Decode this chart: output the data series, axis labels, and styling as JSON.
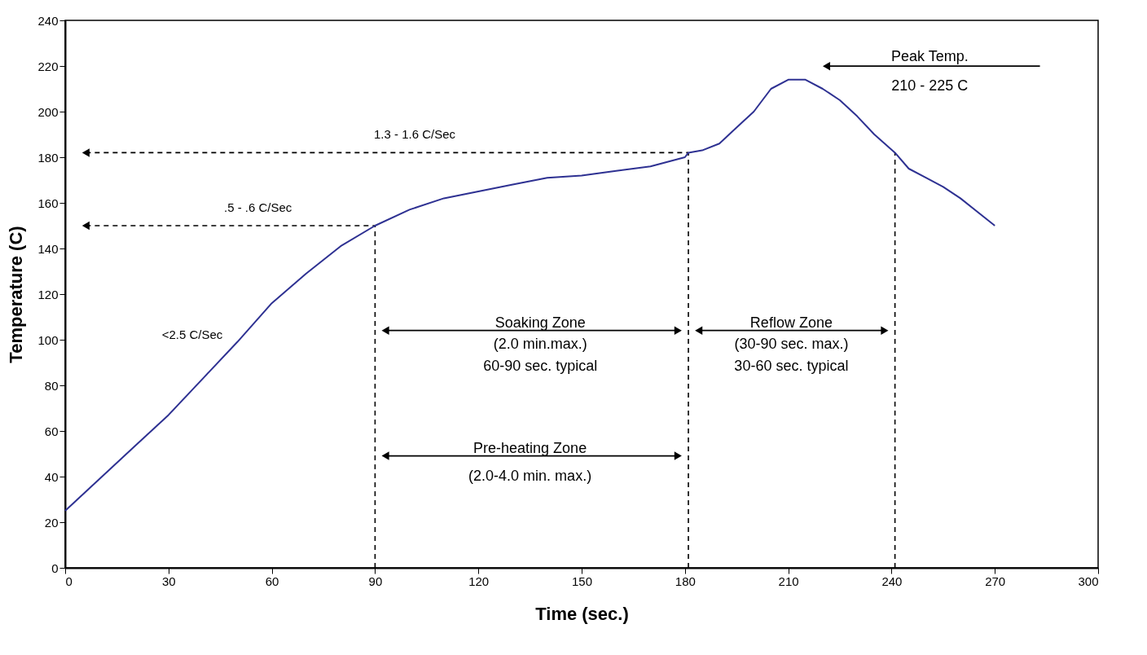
{
  "chart_data": {
    "type": "line",
    "xlabel": "Time (sec.)",
    "ylabel": "Temperature (C)",
    "x": [
      0,
      10,
      20,
      30,
      40,
      50,
      60,
      70,
      80,
      90,
      100,
      110,
      120,
      130,
      140,
      150,
      160,
      170,
      180,
      181,
      185,
      190,
      195,
      200,
      205,
      210,
      215,
      220,
      225,
      230,
      235,
      241,
      245,
      250,
      255,
      260,
      270
    ],
    "series": [
      {
        "color": "#2e3192",
        "values": [
          25,
          39,
          53,
          67,
          83,
          99,
          116,
          129,
          141,
          150,
          157,
          162,
          165,
          168,
          171,
          172,
          174,
          176,
          180,
          182,
          183,
          186,
          193,
          200,
          210,
          214,
          214,
          210,
          205,
          198,
          190,
          182,
          175,
          171,
          167,
          162,
          150
        ]
      }
    ],
    "xlim": [
      0,
      300
    ],
    "ylim": [
      0,
      240
    ],
    "xticks": [
      0,
      30,
      60,
      90,
      120,
      150,
      180,
      210,
      240,
      270,
      300
    ],
    "yticks": [
      0,
      20,
      40,
      60,
      80,
      100,
      120,
      140,
      160,
      180,
      200,
      220,
      240
    ],
    "grid": false,
    "marker": "none",
    "line_style": "solid",
    "ref_lines": [
      {
        "axis": "x",
        "value": 90,
        "line_style": "dashed"
      },
      {
        "axis": "x",
        "value": 181,
        "line_style": "dashed"
      },
      {
        "axis": "x",
        "value": 241,
        "line_style": "dashed"
      },
      {
        "axis": "y",
        "value": 150,
        "label": ".5 - .6 C/Sec",
        "line_style": "dashed"
      },
      {
        "axis": "y",
        "value": 182,
        "label": "1.3 - 1.6 C/Sec",
        "line_style": "dashed"
      }
    ],
    "annotations": [
      "<2.5 C/Sec",
      "Soaking Zone",
      "(2.0 min.max.)",
      "60-90 sec. typical",
      "Reflow Zone",
      "(30-90 sec. max.)",
      "30-60 sec. typical",
      "Pre-heating Zone",
      "(2.0-4.0 min. max.)",
      "Peak Temp.",
      "210 - 225 C"
    ]
  }
}
